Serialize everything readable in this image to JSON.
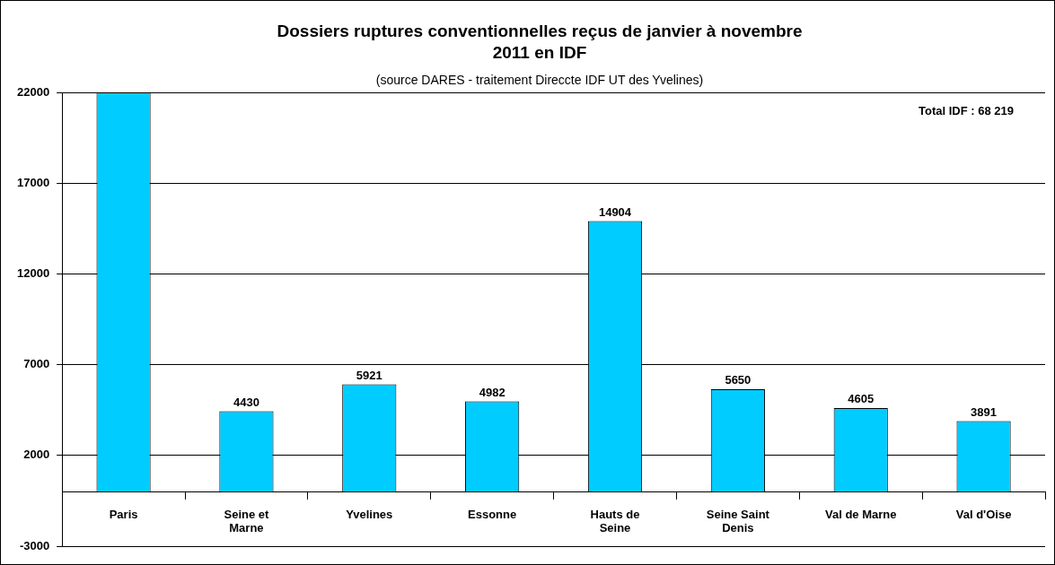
{
  "chart_data": {
    "type": "bar",
    "title": "Dossiers ruptures conventionnelles reçus de janvier à novembre 2011 en IDF",
    "subtitle": "(source DARES - traitement Direccte IDF UT des Yvelines)",
    "categories": [
      "Paris",
      "Seine et Marne",
      "Yvelines",
      "Essonne",
      "Hauts de Seine",
      "Seine Saint Denis",
      "Val de Marne",
      "Val d'Oise"
    ],
    "values": [
      22000,
      4430,
      5921,
      4982,
      14904,
      5650,
      4605,
      3891
    ],
    "value_labels": [
      null,
      "4430",
      "5921",
      "4982",
      "14904",
      "5650",
      "4605",
      "3891"
    ],
    "color": "#00ccff",
    "ylim": [
      -3000,
      22000
    ],
    "yticks": [
      -3000,
      2000,
      7000,
      12000,
      17000,
      22000
    ],
    "grid": "y",
    "legend": false,
    "annotations": [
      "Total IDF : 68 219"
    ]
  }
}
